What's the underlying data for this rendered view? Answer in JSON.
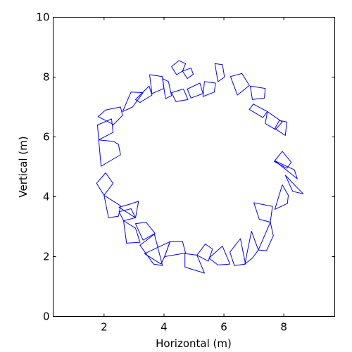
{
  "chart_data": {
    "type": "line",
    "title": "",
    "xlabel": "Horizontal (m)",
    "ylabel": "Vertical (m)",
    "xlim": [
      0.3,
      9.7
    ],
    "ylim": [
      0,
      10
    ],
    "x_ticks": [
      2,
      4,
      6,
      8
    ],
    "y_ticks": [
      0,
      2,
      4,
      6,
      8,
      10
    ],
    "grid": false,
    "legend": "none",
    "line_color": "#0000ff",
    "series": [
      {
        "polygons": [
          [
            [
              4.5,
              8.55
            ],
            [
              4.72,
              8.45
            ],
            [
              4.62,
              8.2
            ],
            [
              4.42,
              8.08
            ],
            [
              4.25,
              8.35
            ]
          ],
          [
            [
              4.62,
              8.2
            ],
            [
              4.9,
              8.3
            ],
            [
              4.98,
              8.1
            ],
            [
              4.78,
              7.95
            ]
          ],
          [
            [
              5.7,
              8.45
            ],
            [
              5.95,
              8.42
            ],
            [
              6.02,
              8.0
            ],
            [
              5.8,
              7.85
            ]
          ],
          [
            [
              6.22,
              8.02
            ],
            [
              6.6,
              8.12
            ],
            [
              6.85,
              7.72
            ],
            [
              6.45,
              7.4
            ]
          ],
          [
            [
              6.88,
              7.7
            ],
            [
              7.38,
              7.62
            ],
            [
              7.35,
              7.3
            ],
            [
              6.95,
              7.25
            ]
          ],
          [
            [
              6.98,
              7.1
            ],
            [
              7.45,
              6.85
            ],
            [
              7.3,
              6.65
            ],
            [
              6.85,
              6.92
            ]
          ],
          [
            [
              7.45,
              6.85
            ],
            [
              7.95,
              6.5
            ],
            [
              7.72,
              6.25
            ],
            [
              7.38,
              6.45
            ]
          ],
          [
            [
              7.7,
              6.28
            ],
            [
              8.05,
              6.05
            ],
            [
              8.1,
              6.5
            ],
            [
              7.85,
              6.55
            ]
          ],
          [
            [
              7.95,
              5.52
            ],
            [
              8.25,
              5.15
            ],
            [
              8.1,
              4.95
            ],
            [
              7.68,
              5.18
            ]
          ],
          [
            [
              7.7,
              5.2
            ],
            [
              8.2,
              4.8
            ],
            [
              8.45,
              4.6
            ],
            [
              8.35,
              4.9
            ]
          ],
          [
            [
              8.05,
              4.72
            ],
            [
              8.45,
              4.3
            ],
            [
              8.65,
              4.1
            ],
            [
              8.3,
              4.18
            ]
          ],
          [
            [
              7.95,
              4.4
            ],
            [
              8.15,
              4.05
            ],
            [
              8.12,
              3.78
            ],
            [
              7.7,
              3.58
            ]
          ],
          [
            [
              7.62,
              3.68
            ],
            [
              7.0,
              3.8
            ],
            [
              7.18,
              3.25
            ],
            [
              7.55,
              3.15
            ]
          ],
          [
            [
              7.55,
              3.15
            ],
            [
              7.65,
              2.7
            ],
            [
              7.42,
              2.2
            ],
            [
              7.15,
              2.22
            ]
          ],
          [
            [
              6.92,
              2.85
            ],
            [
              7.15,
              2.22
            ],
            [
              6.95,
              1.95
            ],
            [
              6.7,
              1.75
            ]
          ],
          [
            [
              6.55,
              2.6
            ],
            [
              6.72,
              1.75
            ],
            [
              6.35,
              1.7
            ],
            [
              6.2,
              2.15
            ]
          ],
          [
            [
              5.95,
              2.35
            ],
            [
              6.2,
              1.75
            ],
            [
              5.8,
              1.72
            ],
            [
              5.5,
              1.95
            ]
          ],
          [
            [
              5.38,
              2.42
            ],
            [
              5.62,
              2.25
            ],
            [
              5.48,
              1.85
            ],
            [
              5.1,
              2.05
            ]
          ],
          [
            [
              5.1,
              2.05
            ],
            [
              5.35,
              1.45
            ],
            [
              4.7,
              1.65
            ],
            [
              4.7,
              2.1
            ]
          ],
          [
            [
              4.02,
              2.0
            ],
            [
              4.72,
              2.12
            ],
            [
              4.62,
              2.5
            ],
            [
              4.2,
              2.5
            ]
          ],
          [
            [
              3.35,
              2.1
            ],
            [
              4.2,
              2.5
            ],
            [
              4.02,
              2.0
            ],
            [
              3.9,
              1.75
            ]
          ],
          [
            [
              3.2,
              2.38
            ],
            [
              3.65,
              1.75
            ],
            [
              3.95,
              1.7
            ],
            [
              3.68,
              2.75
            ]
          ],
          [
            [
              3.3,
              2.55
            ],
            [
              3.7,
              2.78
            ],
            [
              3.4,
              3.15
            ],
            [
              3.05,
              3.1
            ]
          ],
          [
            [
              2.75,
              2.45
            ],
            [
              3.2,
              2.48
            ],
            [
              3.05,
              2.95
            ],
            [
              2.65,
              3.2
            ]
          ],
          [
            [
              2.65,
              3.2
            ],
            [
              3.05,
              3.3
            ],
            [
              2.9,
              3.6
            ],
            [
              2.5,
              3.5
            ]
          ],
          [
            [
              2.5,
              3.65
            ],
            [
              3.05,
              3.3
            ],
            [
              3.15,
              3.85
            ],
            [
              2.85,
              3.75
            ]
          ],
          [
            [
              2.15,
              3.3
            ],
            [
              2.48,
              3.35
            ],
            [
              2.55,
              3.7
            ],
            [
              2.0,
              4.05
            ]
          ],
          [
            [
              2.0,
              4.05
            ],
            [
              2.3,
              4.45
            ],
            [
              2.05,
              4.8
            ],
            [
              1.75,
              4.45
            ]
          ],
          [
            [
              1.9,
              5.02
            ],
            [
              2.2,
              5.2
            ],
            [
              2.55,
              5.4
            ],
            [
              2.48,
              5.75
            ],
            [
              2.32,
              5.85
            ],
            [
              1.82,
              5.9
            ]
          ],
          [
            [
              1.82,
              5.9
            ],
            [
              2.3,
              6.15
            ],
            [
              2.25,
              6.6
            ],
            [
              1.78,
              6.4
            ]
          ],
          [
            [
              1.8,
              6.68
            ],
            [
              2.25,
              6.45
            ],
            [
              2.3,
              6.4
            ],
            [
              2.62,
              6.72
            ],
            [
              2.55,
              7.0
            ],
            [
              2.05,
              6.9
            ]
          ],
          [
            [
              2.62,
              6.85
            ],
            [
              2.95,
              7.0
            ],
            [
              3.3,
              7.48
            ],
            [
              2.9,
              7.5
            ]
          ],
          [
            [
              3.05,
              7.25
            ],
            [
              3.5,
              7.7
            ],
            [
              3.6,
              7.4
            ],
            [
              3.2,
              7.15
            ]
          ],
          [
            [
              3.6,
              7.45
            ],
            [
              4.0,
              7.62
            ],
            [
              3.95,
              8.02
            ],
            [
              3.52,
              8.08
            ]
          ],
          [
            [
              3.95,
              7.95
            ],
            [
              4.15,
              7.85
            ],
            [
              4.25,
              7.38
            ],
            [
              4.05,
              7.28
            ]
          ],
          [
            [
              4.25,
              7.48
            ],
            [
              4.65,
              7.6
            ],
            [
              4.8,
              7.25
            ],
            [
              4.4,
              7.18
            ]
          ],
          [
            [
              4.78,
              7.6
            ],
            [
              5.2,
              7.8
            ],
            [
              5.3,
              7.45
            ],
            [
              4.9,
              7.3
            ]
          ],
          [
            [
              5.35,
              7.85
            ],
            [
              5.72,
              7.8
            ],
            [
              5.68,
              7.5
            ],
            [
              5.3,
              7.35
            ]
          ]
        ]
      }
    ]
  }
}
